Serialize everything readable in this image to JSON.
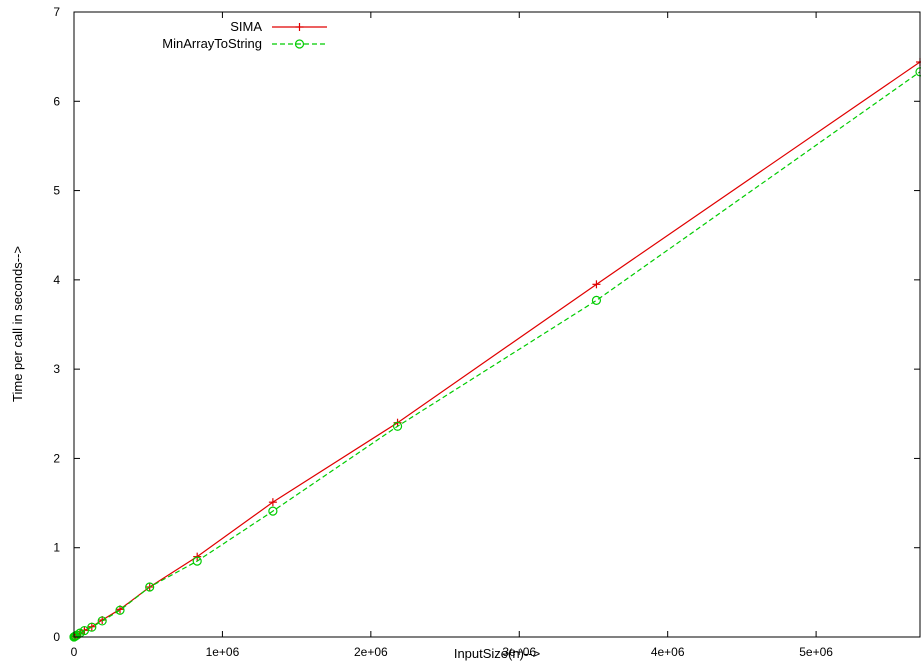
{
  "chart_data": {
    "type": "line",
    "title": "",
    "xlabel": "InputSize(n)-->",
    "ylabel": "Time per call in seconds-->",
    "xlim": [
      0,
      5700000
    ],
    "ylim": [
      0,
      7
    ],
    "x_ticks": [
      0,
      1000000,
      2000000,
      3000000,
      4000000,
      5000000
    ],
    "x_tick_labels": [
      "0",
      "1e+06",
      "2e+06",
      "3e+06",
      "4e+06",
      "5e+06"
    ],
    "y_ticks": [
      0,
      1,
      2,
      3,
      4,
      5,
      6,
      7
    ],
    "y_tick_labels": [
      "0",
      "1",
      "2",
      "3",
      "4",
      "5",
      "6",
      "7"
    ],
    "grid": false,
    "legend_position": "top-left",
    "series": [
      {
        "name": "SIMA",
        "color": "#e00000",
        "line_style": "solid",
        "marker": "plus",
        "x": [
          0,
          1000,
          4000,
          10000,
          20000,
          40000,
          70000,
          120000,
          190000,
          310000,
          510000,
          830000,
          1340000,
          2180000,
          3520000,
          5700000
        ],
        "y": [
          0.0,
          0.001,
          0.005,
          0.011,
          0.022,
          0.045,
          0.075,
          0.115,
          0.19,
          0.31,
          0.56,
          0.9,
          1.51,
          2.4,
          3.95,
          6.44
        ]
      },
      {
        "name": "MinArrayToString",
        "color": "#00cc00",
        "line_style": "dashed",
        "marker": "circle",
        "x": [
          0,
          1000,
          4000,
          10000,
          20000,
          40000,
          70000,
          120000,
          190000,
          310000,
          510000,
          830000,
          1340000,
          2180000,
          3520000,
          5700000
        ],
        "y": [
          0.0,
          0.001,
          0.005,
          0.011,
          0.021,
          0.043,
          0.072,
          0.11,
          0.18,
          0.3,
          0.56,
          0.85,
          1.41,
          2.36,
          3.77,
          6.33
        ]
      }
    ]
  }
}
